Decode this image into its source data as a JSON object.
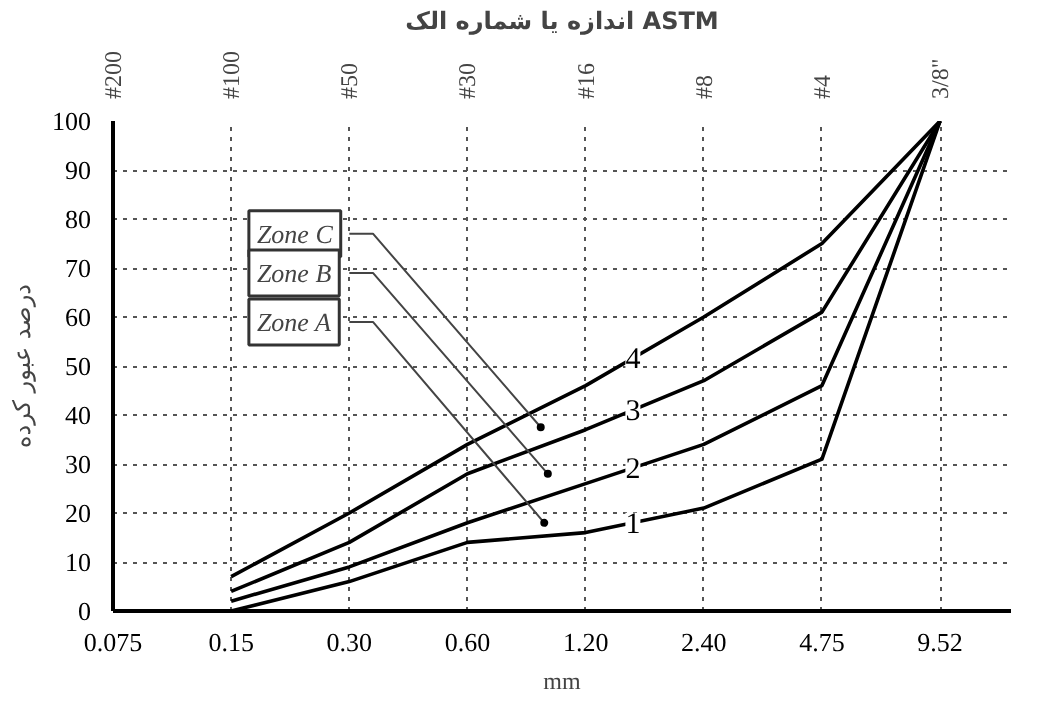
{
  "chart_data": {
    "type": "line",
    "xlabel": "mm",
    "ylabel": "درصد عبور کرده",
    "x2label": "اندازه یا شماره الک ASTM",
    "categories": [
      "0.075",
      "0.15",
      "0.30",
      "0.60",
      "1.20",
      "2.40",
      "4.75",
      "9.52"
    ],
    "ylim": [
      0,
      100
    ],
    "yticks": [
      0,
      10,
      20,
      30,
      40,
      50,
      60,
      70,
      80,
      90,
      100
    ],
    "grid": true,
    "line_style": "solid",
    "marker": "none",
    "series": [
      {
        "name": "1",
        "color": "#000000",
        "values": [
          null,
          0,
          6,
          14,
          16,
          21,
          31,
          100
        ]
      },
      {
        "name": "2",
        "color": "#000000",
        "values": [
          null,
          2,
          9,
          18,
          26,
          34,
          46,
          100
        ]
      },
      {
        "name": "3",
        "color": "#000000",
        "values": [
          null,
          4,
          14,
          28,
          37,
          47,
          61,
          100
        ]
      },
      {
        "name": "4",
        "color": "#000000",
        "values": [
          null,
          7,
          20,
          34,
          46,
          60,
          75,
          100
        ]
      }
    ],
    "annotations": [
      "#200",
      "#100",
      "#50",
      "#30",
      "#16",
      "#8",
      "#4",
      "3/8\"",
      "Zone C",
      "Zone B",
      "Zone A"
    ]
  }
}
